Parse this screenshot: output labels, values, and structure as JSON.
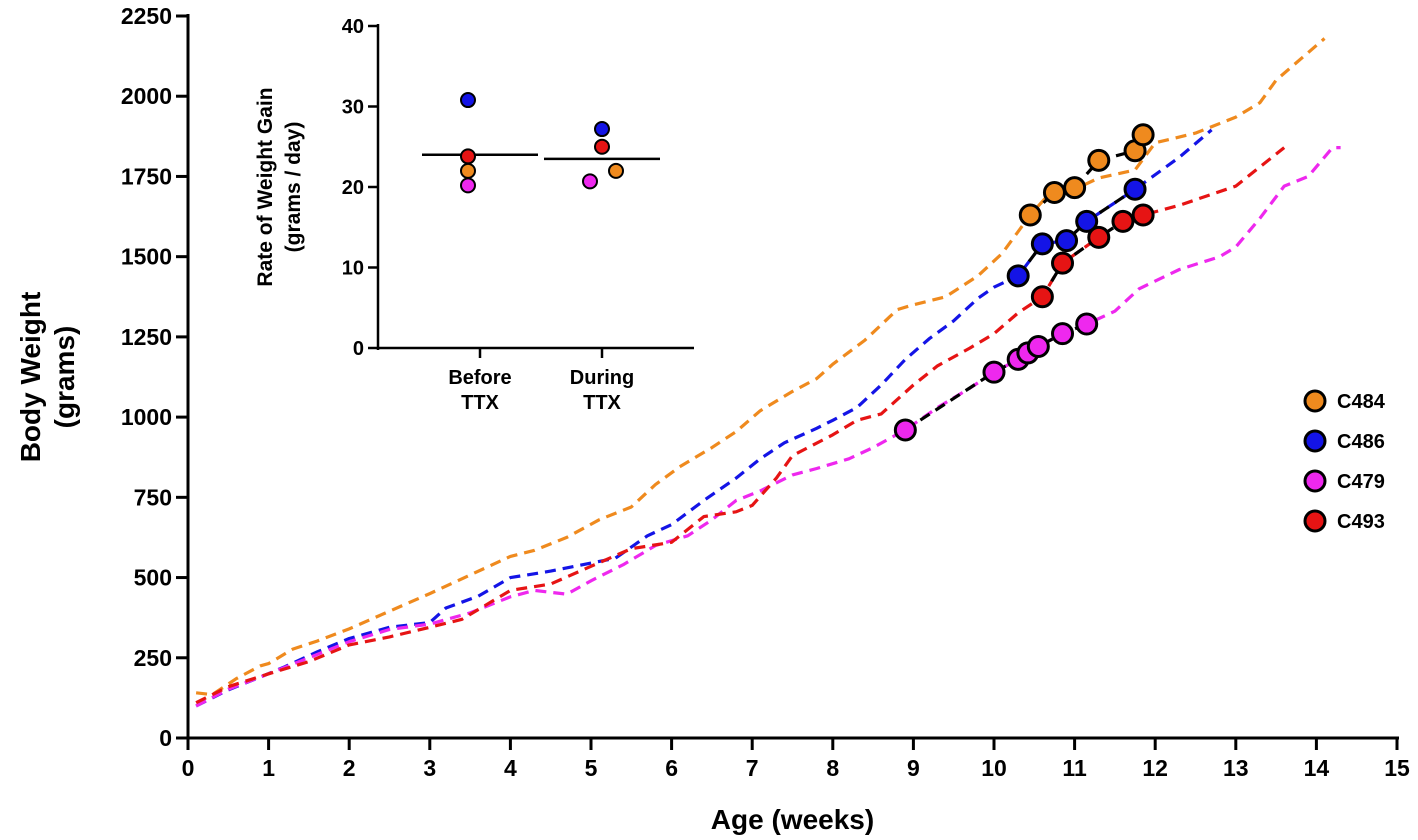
{
  "chart_data": [
    {
      "type": "line",
      "title": "",
      "xlabel": "Age (weeks)",
      "ylabel": [
        "Body Weight",
        "(grams)"
      ],
      "xlim": [
        0,
        15
      ],
      "ylim": [
        0,
        2250
      ],
      "xticks": [
        0,
        1,
        2,
        3,
        4,
        5,
        6,
        7,
        8,
        9,
        10,
        11,
        12,
        13,
        14,
        15
      ],
      "yticks": [
        0,
        250,
        500,
        750,
        1000,
        1250,
        1500,
        1750,
        2000,
        2250
      ],
      "grid": false,
      "legend_position": "right",
      "series": [
        {
          "name": "C484",
          "color": "#ef8a1e",
          "line": [
            [
              0.1,
              141
            ],
            [
              0.3,
              135
            ],
            [
              0.6,
              185
            ],
            [
              0.9,
              225
            ],
            [
              1.0,
              232
            ],
            [
              1.3,
              277
            ],
            [
              1.6,
              302
            ],
            [
              2.0,
              340
            ],
            [
              2.5,
              395
            ],
            [
              3.0,
              450
            ],
            [
              3.5,
              508
            ],
            [
              4.0,
              566
            ],
            [
              4.3,
              585
            ],
            [
              4.7,
              625
            ],
            [
              5.1,
              680
            ],
            [
              5.5,
              720
            ],
            [
              5.8,
              790
            ],
            [
              6.1,
              845
            ],
            [
              6.5,
              905
            ],
            [
              6.8,
              955
            ],
            [
              7.1,
              1020
            ],
            [
              7.5,
              1080
            ],
            [
              7.8,
              1120
            ],
            [
              8.0,
              1165
            ],
            [
              8.4,
              1240
            ],
            [
              8.8,
              1335
            ],
            [
              9.0,
              1350
            ],
            [
              9.4,
              1375
            ],
            [
              9.8,
              1440
            ],
            [
              10.1,
              1510
            ],
            [
              10.45,
              1630
            ],
            [
              10.7,
              1700
            ],
            [
              11.0,
              1710
            ],
            [
              11.3,
              1745
            ],
            [
              11.75,
              1770
            ],
            [
              12.0,
              1855
            ],
            [
              12.5,
              1885
            ],
            [
              13.0,
              1935
            ],
            [
              13.3,
              1980
            ],
            [
              13.5,
              2050
            ],
            [
              14.1,
              2180
            ]
          ],
          "points": [
            [
              10.45,
              1630
            ],
            [
              10.75,
              1700
            ],
            [
              11.0,
              1715
            ],
            [
              11.3,
              1800
            ],
            [
              11.75,
              1830
            ],
            [
              11.85,
              1880
            ]
          ]
        },
        {
          "name": "C486",
          "color": "#1414e6",
          "line": [
            [
              0.1,
              100
            ],
            [
              0.5,
              150
            ],
            [
              0.9,
              190
            ],
            [
              1.2,
              222
            ],
            [
              1.6,
              268
            ],
            [
              2.0,
              310
            ],
            [
              2.5,
              345
            ],
            [
              3.0,
              360
            ],
            [
              3.2,
              405
            ],
            [
              3.6,
              442
            ],
            [
              4.0,
              500
            ],
            [
              4.5,
              520
            ],
            [
              5.0,
              545
            ],
            [
              5.3,
              560
            ],
            [
              5.7,
              630
            ],
            [
              6.0,
              665
            ],
            [
              6.4,
              740
            ],
            [
              6.8,
              810
            ],
            [
              7.1,
              870
            ],
            [
              7.4,
              920
            ],
            [
              7.8,
              965
            ],
            [
              8.0,
              990
            ],
            [
              8.3,
              1030
            ],
            [
              8.6,
              1100
            ],
            [
              8.9,
              1180
            ],
            [
              9.2,
              1245
            ],
            [
              9.5,
              1300
            ],
            [
              9.8,
              1370
            ],
            [
              10.0,
              1405
            ],
            [
              10.3,
              1440
            ],
            [
              10.6,
              1540
            ],
            [
              10.9,
              1550
            ],
            [
              11.15,
              1610
            ],
            [
              11.75,
              1710
            ],
            [
              12.3,
              1810
            ],
            [
              12.7,
              1895
            ]
          ],
          "points": [
            [
              10.3,
              1440
            ],
            [
              10.6,
              1540
            ],
            [
              10.9,
              1550
            ],
            [
              11.15,
              1610
            ],
            [
              11.75,
              1710
            ]
          ]
        },
        {
          "name": "C479",
          "color": "#ee28ee",
          "line": [
            [
              0.1,
              100
            ],
            [
              0.5,
              152
            ],
            [
              1.0,
              200
            ],
            [
              1.5,
              250
            ],
            [
              2.0,
              300
            ],
            [
              2.5,
              338
            ],
            [
              3.0,
              355
            ],
            [
              3.5,
              390
            ],
            [
              4.0,
              440
            ],
            [
              4.3,
              460
            ],
            [
              4.7,
              448
            ],
            [
              5.0,
              490
            ],
            [
              5.4,
              540
            ],
            [
              5.8,
              600
            ],
            [
              6.2,
              630
            ],
            [
              6.5,
              680
            ],
            [
              6.8,
              740
            ],
            [
              7.1,
              770
            ],
            [
              7.5,
              820
            ],
            [
              7.8,
              840
            ],
            [
              8.2,
              870
            ],
            [
              8.5,
              905
            ],
            [
              8.9,
              960
            ],
            [
              9.3,
              1030
            ],
            [
              9.7,
              1090
            ],
            [
              10.0,
              1140
            ],
            [
              10.3,
              1180
            ],
            [
              10.55,
              1220
            ],
            [
              10.85,
              1260
            ],
            [
              11.15,
              1290
            ],
            [
              11.5,
              1330
            ],
            [
              11.8,
              1400
            ],
            [
              12.3,
              1460
            ],
            [
              12.8,
              1500
            ],
            [
              13.0,
              1530
            ],
            [
              13.3,
              1620
            ],
            [
              13.6,
              1720
            ],
            [
              13.9,
              1750
            ],
            [
              14.2,
              1840
            ],
            [
              14.3,
              1840
            ]
          ],
          "points": [
            [
              8.9,
              960
            ],
            [
              10.0,
              1140
            ],
            [
              10.3,
              1180
            ],
            [
              10.42,
              1200
            ],
            [
              10.55,
              1220
            ],
            [
              10.85,
              1260
            ],
            [
              11.15,
              1290
            ]
          ]
        },
        {
          "name": "C493",
          "color": "#e61414",
          "line": [
            [
              0.1,
              110
            ],
            [
              0.5,
              160
            ],
            [
              1.0,
              200
            ],
            [
              1.5,
              238
            ],
            [
              2.0,
              290
            ],
            [
              2.5,
              315
            ],
            [
              3.0,
              345
            ],
            [
              3.4,
              370
            ],
            [
              4.0,
              460
            ],
            [
              4.5,
              480
            ],
            [
              5.0,
              535
            ],
            [
              5.5,
              590
            ],
            [
              6.0,
              610
            ],
            [
              6.4,
              690
            ],
            [
              6.8,
              705
            ],
            [
              7.0,
              725
            ],
            [
              7.3,
              810
            ],
            [
              7.5,
              880
            ],
            [
              8.0,
              945
            ],
            [
              8.3,
              990
            ],
            [
              8.6,
              1010
            ],
            [
              9.0,
              1100
            ],
            [
              9.3,
              1160
            ],
            [
              9.7,
              1215
            ],
            [
              10.0,
              1260
            ],
            [
              10.3,
              1325
            ],
            [
              10.6,
              1375
            ],
            [
              10.85,
              1480
            ],
            [
              11.3,
              1560
            ],
            [
              11.6,
              1610
            ],
            [
              11.85,
              1630
            ],
            [
              12.3,
              1660
            ],
            [
              13.0,
              1720
            ],
            [
              13.6,
              1840
            ]
          ],
          "points": [
            [
              10.6,
              1375
            ],
            [
              10.85,
              1480
            ],
            [
              11.3,
              1560
            ],
            [
              11.6,
              1610
            ],
            [
              11.85,
              1630
            ]
          ]
        }
      ]
    },
    {
      "type": "scatter",
      "title": "",
      "xlabel": "",
      "ylabel": [
        "Rate of Weight Gain",
        "(grams / day)"
      ],
      "ylim": [
        0,
        40
      ],
      "yticks": [
        0,
        10,
        20,
        30,
        40
      ],
      "categories": [
        [
          "Before",
          "TTX"
        ],
        [
          "During",
          "TTX"
        ]
      ],
      "means": [
        24.0,
        23.5
      ],
      "points": [
        {
          "category": 0,
          "series": "C486",
          "value": 30.8
        },
        {
          "category": 0,
          "series": "C493",
          "value": 23.8
        },
        {
          "category": 0,
          "series": "C484",
          "value": 22.0
        },
        {
          "category": 0,
          "series": "C479",
          "value": 20.2
        },
        {
          "category": 1,
          "series": "C486",
          "value": 27.2
        },
        {
          "category": 1,
          "series": "C493",
          "value": 25.0
        },
        {
          "category": 1,
          "series": "C484",
          "value": 22.0
        },
        {
          "category": 1,
          "series": "C479",
          "value": 20.7
        }
      ]
    }
  ]
}
